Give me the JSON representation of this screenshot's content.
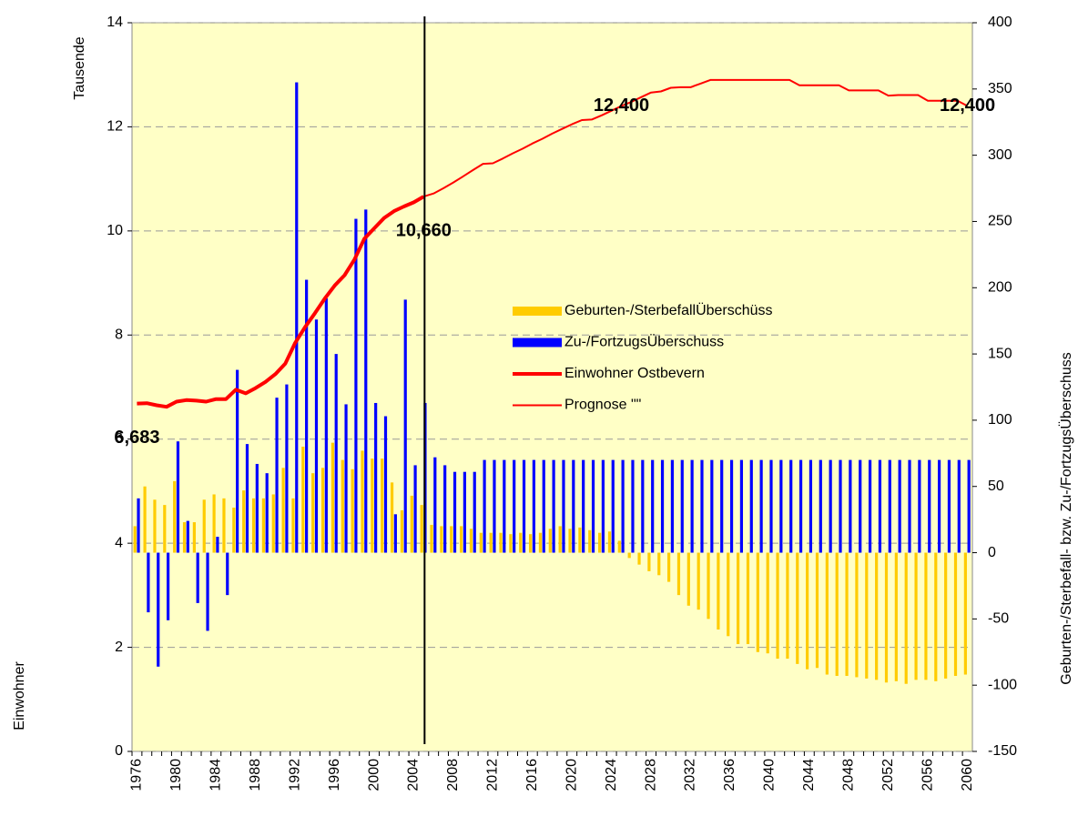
{
  "chart_data": {
    "type": "combo",
    "y_label": "Tausende",
    "y_label2": "Einwohner",
    "y2_label": "Geburten-/Sterbefall- bzw. Zu-/FortzugsÜberschuss",
    "categories": [
      "1976",
      null,
      null,
      null,
      "1980",
      null,
      null,
      null,
      "1984",
      null,
      null,
      null,
      "1988",
      null,
      null,
      null,
      "1992",
      null,
      null,
      null,
      "1996",
      null,
      null,
      null,
      "2000",
      null,
      null,
      null,
      "2004",
      null,
      null,
      null,
      "2008",
      null,
      null,
      null,
      "2012",
      null,
      null,
      null,
      "2016",
      null,
      null,
      null,
      "2020",
      null,
      null,
      null,
      "2024",
      null,
      null,
      null,
      "2028",
      null,
      null,
      null,
      "2032",
      null,
      null,
      null,
      "2036",
      null,
      null,
      null,
      "2040",
      null,
      null,
      null,
      "2044",
      null,
      null,
      null,
      "2048",
      null,
      null,
      null,
      "2052",
      null,
      null,
      null,
      "2056",
      null,
      null,
      null,
      "2060"
    ],
    "ylim": [
      0,
      14
    ],
    "yticks": [
      0,
      2,
      4,
      6,
      8,
      10,
      12,
      14
    ],
    "y2lim": [
      -150,
      400
    ],
    "y2ticks": [
      -150,
      -100,
      -50,
      0,
      50,
      100,
      150,
      200,
      250,
      300,
      350,
      400
    ],
    "grid": true,
    "series": [
      {
        "name": "Geburten-/SterbefallÜberschüss",
        "type": "bar",
        "axis": "y2",
        "color": "#ffcc00",
        "values": [
          20,
          50,
          40,
          36,
          54,
          23,
          23,
          40,
          44,
          41,
          34,
          47,
          41,
          41,
          44,
          64,
          41,
          80,
          60,
          64,
          83,
          70,
          63,
          77,
          71,
          71,
          53,
          32,
          43,
          36,
          21,
          20,
          20,
          20,
          18,
          15,
          15,
          15,
          14,
          15,
          14,
          15,
          18,
          20,
          18,
          19,
          17,
          15,
          16,
          9,
          -4,
          -9,
          -14,
          -17,
          -22,
          -32,
          -40,
          -43,
          -50,
          -58,
          -63,
          -69,
          -69,
          -75,
          -76,
          -80,
          -80,
          -84,
          -88,
          -87,
          -92,
          -93,
          -93,
          -94,
          -95,
          -96,
          -98,
          -97,
          -99,
          -96,
          -96,
          -97,
          -95,
          -93,
          -92
        ]
      },
      {
        "name": "Zu-/FortzugsÜberschuss",
        "type": "bar",
        "axis": "y2",
        "color": "#0000ff",
        "values": [
          41,
          -45,
          -86,
          -51,
          84,
          24,
          -38,
          -59,
          12,
          -32,
          138,
          82,
          67,
          60,
          117,
          127,
          355,
          206,
          176,
          192,
          150,
          112,
          252,
          259,
          113,
          103,
          29,
          191,
          66,
          113,
          72,
          66,
          61,
          61,
          61,
          70,
          70,
          70,
          70,
          70,
          70,
          70,
          70,
          70,
          70,
          70,
          70,
          70,
          70,
          70,
          70,
          70,
          70,
          70,
          70,
          70,
          70,
          70,
          70,
          70,
          70,
          70,
          70,
          70,
          70,
          70,
          70,
          70,
          70,
          70,
          70,
          70,
          70,
          70,
          70,
          70,
          70,
          70,
          70,
          70,
          70,
          70,
          70,
          70,
          70
        ]
      },
      {
        "name": "Einwohner Ostbevern",
        "type": "line",
        "color": "#ff0000",
        "width": 4,
        "values": [
          6.683,
          6.69,
          6.65,
          6.62,
          6.72,
          6.75,
          6.74,
          6.72,
          6.77,
          6.77,
          6.95,
          6.88,
          6.98,
          7.1,
          7.25,
          7.45,
          7.85,
          8.15,
          8.42,
          8.7,
          8.95,
          9.15,
          9.45,
          9.85,
          10.05,
          10.25,
          10.38,
          10.47,
          10.55,
          10.66,
          null,
          null,
          null,
          null,
          null,
          null,
          null,
          null,
          null,
          null,
          null,
          null,
          null,
          null,
          null,
          null,
          null,
          null,
          null,
          null,
          null,
          null,
          null,
          null,
          null,
          null,
          null,
          null,
          null,
          null,
          null,
          null,
          null,
          null,
          null,
          null,
          null,
          null,
          null,
          null,
          null,
          null,
          null,
          null,
          null,
          null,
          null,
          null,
          null,
          null,
          null,
          null,
          null,
          null,
          null
        ],
        "value_labels": [
          "6,683",
          null,
          null,
          null,
          null,
          null,
          null,
          null,
          null,
          null,
          null,
          null,
          null,
          null,
          null,
          null,
          null,
          null,
          null,
          null,
          null,
          null,
          null,
          null,
          null,
          null,
          null,
          null,
          null,
          "10,660",
          null,
          null,
          null,
          null,
          null,
          null,
          null,
          null,
          null,
          null,
          null,
          null,
          null,
          null,
          null,
          null,
          null,
          null,
          null,
          null,
          null,
          null,
          null,
          null,
          null,
          null,
          null,
          null,
          null,
          null,
          null,
          null,
          null,
          null,
          null,
          null,
          null,
          null,
          null,
          null,
          null,
          null,
          null,
          null,
          null,
          null,
          null,
          null,
          null,
          null,
          null,
          null,
          null,
          null,
          null
        ]
      },
      {
        "name": "Prognose  \"\"",
        "type": "line",
        "color": "#ff0000",
        "width": 2,
        "values": [
          null,
          null,
          null,
          null,
          null,
          null,
          null,
          null,
          null,
          null,
          null,
          null,
          null,
          null,
          null,
          null,
          null,
          null,
          null,
          null,
          null,
          null,
          null,
          null,
          null,
          null,
          null,
          null,
          null,
          10.66,
          10.72,
          10.82,
          10.93,
          11.05,
          11.17,
          11.29,
          11.3,
          11.39,
          11.49,
          11.58,
          11.68,
          11.77,
          11.87,
          11.96,
          12.05,
          12.13,
          12.14,
          12.22,
          12.31,
          12.4,
          12.48,
          12.57,
          12.66,
          12.68,
          12.75,
          12.76,
          12.76,
          12.83,
          12.9,
          12.9,
          12.9,
          12.9,
          12.9,
          12.9,
          12.9,
          12.9,
          12.9,
          12.8,
          12.8,
          12.8,
          12.8,
          12.8,
          12.7,
          12.7,
          12.7,
          12.7,
          12.6,
          12.61,
          12.61,
          12.61,
          12.5,
          12.5,
          12.5,
          12.5,
          12.4
        ],
        "value_labels": [
          null,
          null,
          null,
          null,
          null,
          null,
          null,
          null,
          null,
          null,
          null,
          null,
          null,
          null,
          null,
          null,
          null,
          null,
          null,
          null,
          null,
          null,
          null,
          null,
          null,
          null,
          null,
          null,
          null,
          null,
          null,
          null,
          null,
          null,
          null,
          null,
          null,
          null,
          null,
          null,
          null,
          null,
          null,
          null,
          null,
          null,
          null,
          null,
          null,
          "12,400",
          null,
          null,
          null,
          null,
          null,
          null,
          null,
          null,
          null,
          null,
          null,
          null,
          null,
          null,
          null,
          null,
          null,
          null,
          null,
          null,
          null,
          null,
          null,
          null,
          null,
          null,
          null,
          null,
          null,
          null,
          null,
          null,
          null,
          null,
          "12,400"
        ]
      }
    ]
  }
}
